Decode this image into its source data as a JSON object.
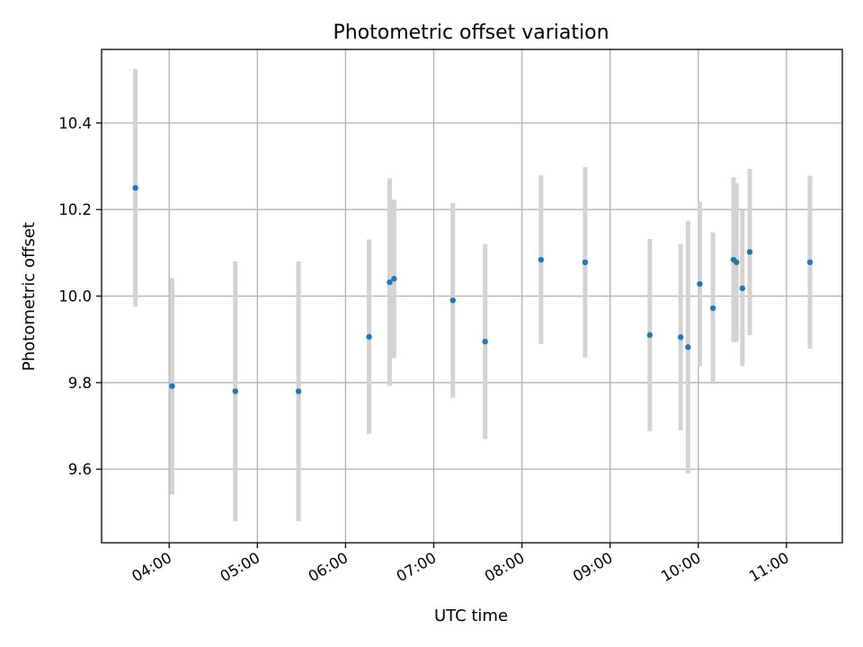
{
  "chart_data": {
    "type": "scatter",
    "title": "Photometric offset variation",
    "xlabel": "UTC time",
    "ylabel": "Photometric offset",
    "xlim": [
      "03:14",
      "11:38"
    ],
    "ylim": [
      9.43,
      10.57
    ],
    "x_ticks": [
      "04:00",
      "05:00",
      "06:00",
      "07:00",
      "08:00",
      "09:00",
      "10:00",
      "11:00"
    ],
    "y_ticks": [
      9.6,
      9.8,
      10.0,
      10.2,
      10.4
    ],
    "y_tick_labels": [
      "9.6",
      "9.8",
      "10.0",
      "10.2",
      "10.4"
    ],
    "grid": true,
    "colors": {
      "point": "#1f77b4",
      "errorbar": "#d3d3d3",
      "grid": "#b0b0b0"
    },
    "points": [
      {
        "x": "03:37",
        "y": 10.25,
        "yerr": 0.275
      },
      {
        "x": "04:02",
        "y": 9.792,
        "yerr": 0.25
      },
      {
        "x": "04:45",
        "y": 9.78,
        "yerr": 0.3
      },
      {
        "x": "05:28",
        "y": 9.78,
        "yerr": 0.3
      },
      {
        "x": "06:16",
        "y": 9.906,
        "yerr": 0.225
      },
      {
        "x": "06:30",
        "y": 10.032,
        "yerr": 0.24
      },
      {
        "x": "06:33",
        "y": 10.04,
        "yerr": 0.183
      },
      {
        "x": "07:13",
        "y": 9.99,
        "yerr": 0.225
      },
      {
        "x": "07:35",
        "y": 9.895,
        "yerr": 0.225
      },
      {
        "x": "08:13",
        "y": 10.084,
        "yerr": 0.195
      },
      {
        "x": "08:43",
        "y": 10.078,
        "yerr": 0.22
      },
      {
        "x": "09:27",
        "y": 9.91,
        "yerr": 0.222
      },
      {
        "x": "09:48",
        "y": 9.905,
        "yerr": 0.215
      },
      {
        "x": "09:53",
        "y": 9.882,
        "yerr": 0.292
      },
      {
        "x": "10:01",
        "y": 10.028,
        "yerr": 0.19
      },
      {
        "x": "10:10",
        "y": 9.972,
        "yerr": 0.175
      },
      {
        "x": "10:24",
        "y": 10.084,
        "yerr": 0.19
      },
      {
        "x": "10:26",
        "y": 10.078,
        "yerr": 0.183
      },
      {
        "x": "10:30",
        "y": 10.018,
        "yerr": 0.18
      },
      {
        "x": "10:35",
        "y": 10.102,
        "yerr": 0.192
      },
      {
        "x": "11:16",
        "y": 10.078,
        "yerr": 0.2
      }
    ]
  }
}
